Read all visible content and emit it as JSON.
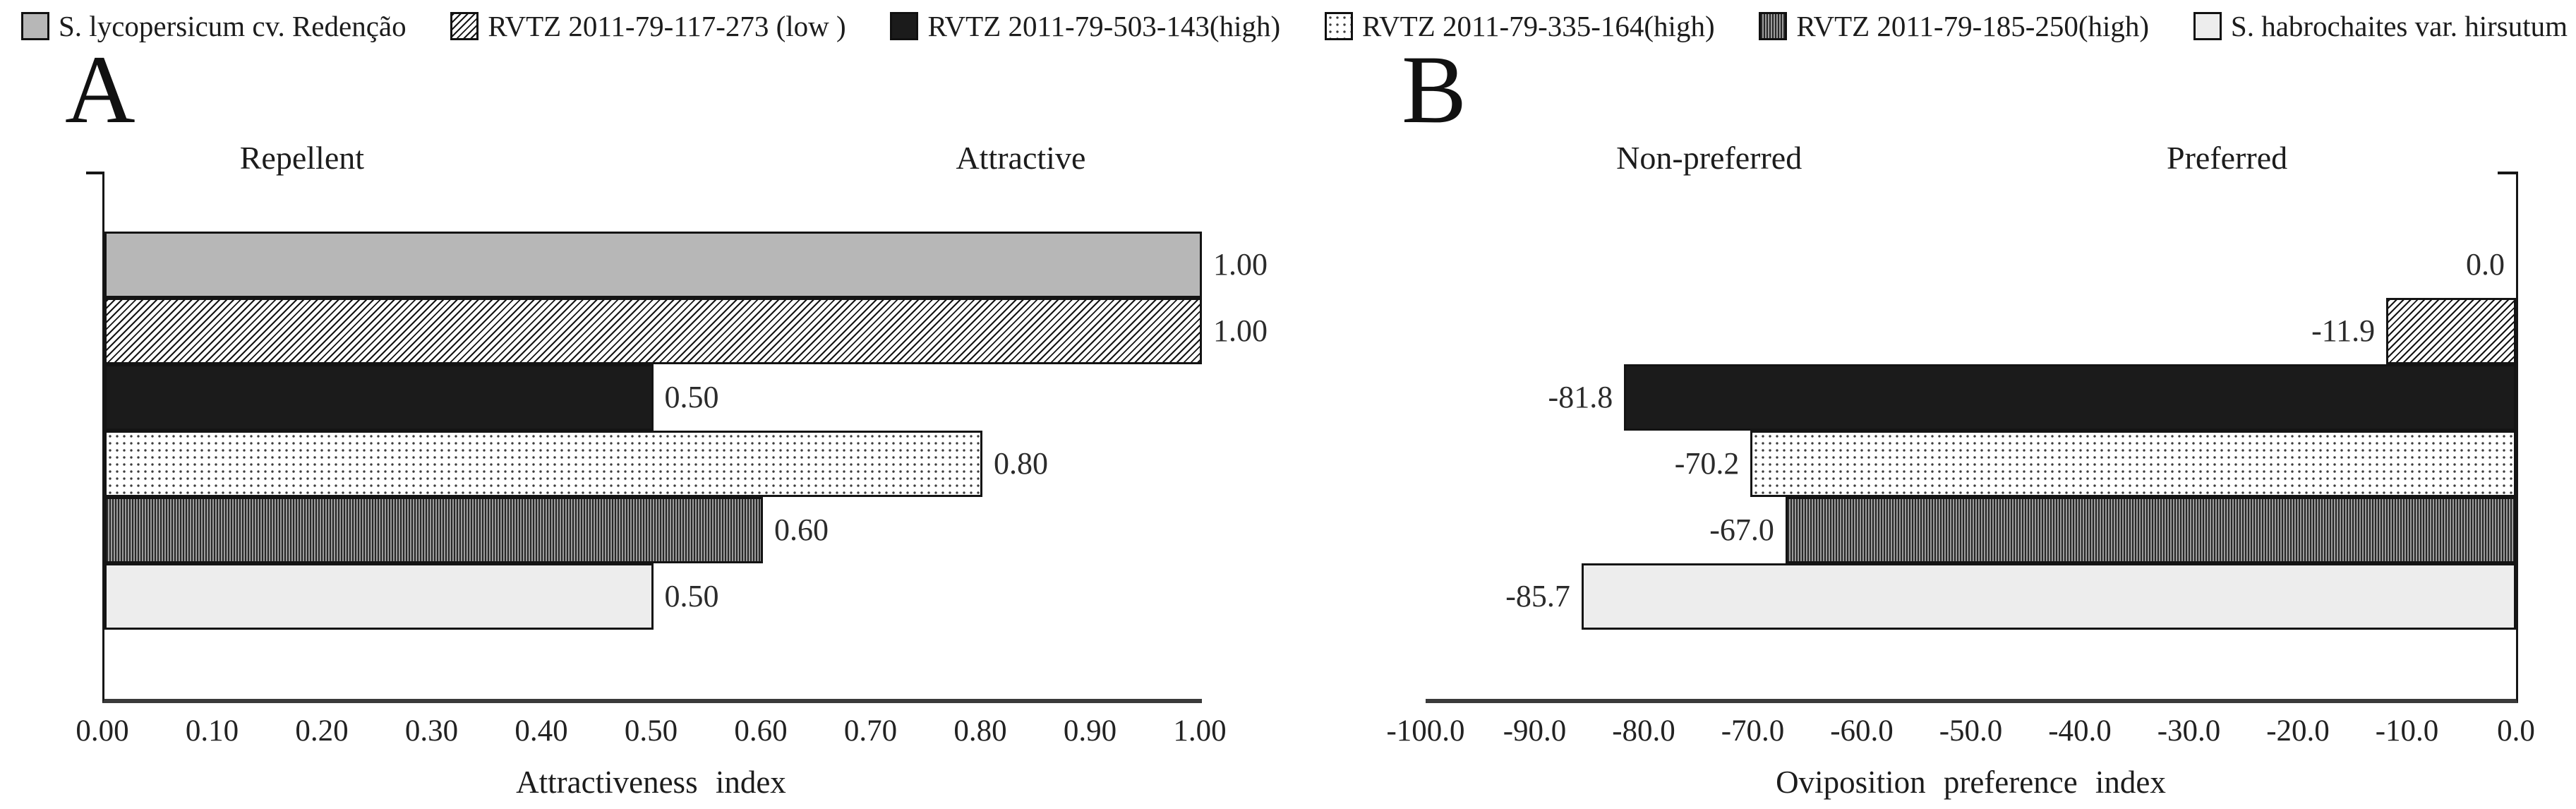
{
  "legend": {
    "items": [
      {
        "label": "S. lycopersicum cv. Redenção",
        "pattern": "gray-solid"
      },
      {
        "label": "RVTZ 2011-79-117-273 (low )",
        "pattern": "diagonal-hatch"
      },
      {
        "label": "RVTZ 2011-79-503-143(high)",
        "pattern": "black-solid"
      },
      {
        "label": "RVTZ 2011-79-335-164(high)",
        "pattern": "white-dotted"
      },
      {
        "label": "RVTZ 2011-79-185-250(high)",
        "pattern": "dark-dense-vertical"
      },
      {
        "label": "S. habrochaites var. hirsutum",
        "pattern": "light-gray-solid"
      }
    ]
  },
  "colors": {
    "gray_fill": "#b7b7b7",
    "black_fill": "#1b1b1b",
    "light_fill": "#ededed",
    "bar_border": "#141414",
    "bottom_axis": "#3a3a3a",
    "side_axis": "#161616",
    "text": "#1c1c1c"
  },
  "chart_data": [
    {
      "type": "bar",
      "orientation": "horizontal",
      "panel_label": "A",
      "annotations": {
        "left": "Repellent",
        "right": "Attractive"
      },
      "categories": [
        "S. lycopersicum cv. Redenção",
        "RVTZ 2011-79-117-273 (low )",
        "RVTZ 2011-79-503-143(high)",
        "RVTZ 2011-79-335-164(high)",
        "RVTZ 2011-79-185-250(high)",
        "S. habrochaites var. hirsutum"
      ],
      "values": [
        1.0,
        1.0,
        0.5,
        0.8,
        0.6,
        0.5
      ],
      "data_labels": [
        "1.00",
        "1.00",
        "0.50",
        "0.80",
        "0.60",
        "0.50"
      ],
      "xlabel": "Attractiveness index",
      "xlim": [
        0,
        1
      ],
      "xticks": [
        "0.00",
        "0.10",
        "0.20",
        "0.30",
        "0.40",
        "0.50",
        "0.60",
        "0.70",
        "0.80",
        "0.90",
        "1.00"
      ],
      "bar_anchor": "left",
      "axis_side": "left",
      "grid": false,
      "legend_position": "top"
    },
    {
      "type": "bar",
      "orientation": "horizontal",
      "panel_label": "B",
      "annotations": {
        "left": "Non-preferred",
        "right": "Preferred"
      },
      "categories": [
        "S. lycopersicum cv. Redenção",
        "RVTZ 2011-79-117-273 (low )",
        "RVTZ 2011-79-503-143(high)",
        "RVTZ 2011-79-335-164(high)",
        "RVTZ 2011-79-185-250(high)",
        "S. habrochaites var. hirsutum"
      ],
      "values": [
        0.0,
        -11.9,
        -81.8,
        -70.2,
        -67.0,
        -85.7
      ],
      "data_labels": [
        "0.0",
        "-11.9",
        "-81.8",
        "-70.2",
        "-67.0",
        "-85.7"
      ],
      "xlabel": "Oviposition preference index",
      "xlim": [
        -100,
        0
      ],
      "xticks": [
        "-100.0",
        "-90.0",
        "-80.0",
        "-70.0",
        "-60.0",
        "-50.0",
        "-40.0",
        "-30.0",
        "-20.0",
        "-10.0",
        "0.0"
      ],
      "bar_anchor": "right",
      "axis_side": "right",
      "grid": false,
      "legend_position": "top"
    }
  ]
}
